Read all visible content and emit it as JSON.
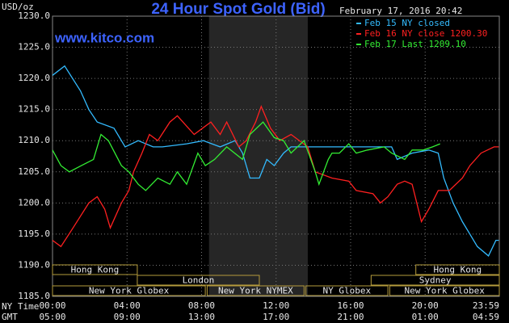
{
  "chart_data": {
    "type": "line",
    "title": "24 Hour Spot Gold (Bid)",
    "source": "www.kitco.com",
    "timestamp": "February 17, 2016 20:42",
    "unit": "USD/oz",
    "xlabel": "NY Time",
    "x2label": "GMT",
    "xlim": [
      0,
      23.98
    ],
    "ylim": [
      1185,
      1230
    ],
    "yticks": [
      {
        "value": 1185,
        "label": "1185.0"
      },
      {
        "value": 1190,
        "label": "1190.0"
      },
      {
        "value": 1195,
        "label": "1195.0"
      },
      {
        "value": 1200,
        "label": "1200.0"
      },
      {
        "value": 1205,
        "label": "1205.0"
      },
      {
        "value": 1210,
        "label": "1210.0"
      },
      {
        "value": 1215,
        "label": "1215.0"
      },
      {
        "value": 1220,
        "label": "1220.0"
      },
      {
        "value": 1225,
        "label": "1225.0"
      },
      {
        "value": 1230,
        "label": "1230.0"
      }
    ],
    "xticks": [
      {
        "value": 0,
        "label": "00:00"
      },
      {
        "value": 4,
        "label": "04:00"
      },
      {
        "value": 8,
        "label": "08:00"
      },
      {
        "value": 12,
        "label": "12:00"
      },
      {
        "value": 16,
        "label": "16:00"
      },
      {
        "value": 20,
        "label": "20:00"
      },
      {
        "value": 23.98,
        "label": "23:59"
      }
    ],
    "x2ticks": [
      {
        "value": 0,
        "label": "05:00"
      },
      {
        "value": 4,
        "label": "09:00"
      },
      {
        "value": 8,
        "label": "13:00"
      },
      {
        "value": 12,
        "label": "17:00"
      },
      {
        "value": 16,
        "label": "21:00"
      },
      {
        "value": 20,
        "label": "01:00"
      },
      {
        "value": 23.98,
        "label": "04:59"
      }
    ],
    "grid": true,
    "highlight_range": [
      8.4,
      13.7
    ],
    "sessions": [
      [
        {
          "label": "Hong Kong",
          "start": 0,
          "end": 4.55
        },
        {
          "label": "Hong Kong",
          "start": 19.5,
          "end": 23.98
        }
      ],
      [
        {
          "label": "London",
          "start": 4.55,
          "end": 11.1
        },
        {
          "label": "Sydney",
          "start": 17.1,
          "end": 23.98
        }
      ],
      [
        {
          "label": "New York Globex",
          "start": 0,
          "end": 8.2
        },
        {
          "label": "New York NYMEX",
          "start": 8.3,
          "end": 13.5
        },
        {
          "label": "NY Globex",
          "start": 13.6,
          "end": 18.0
        },
        {
          "label": "New York Globex",
          "start": 18.1,
          "end": 23.98
        }
      ]
    ],
    "series": [
      {
        "name": "Feb 15 NY closed",
        "color": "#33bbff",
        "x": [
          0,
          0.65,
          1.5,
          1.95,
          2.4,
          3.3,
          3.9,
          4.6,
          5.4,
          5.9,
          7.2,
          8.1,
          9.0,
          9.8,
          10.2,
          10.6,
          11.1,
          11.5,
          11.9,
          12.4,
          12.8,
          13.3,
          18.2,
          18.5,
          19.3,
          20.2,
          20.7,
          21.0,
          21.5,
          22.0,
          22.4,
          22.8,
          23.4,
          23.8,
          23.95
        ],
        "values": [
          1220.5,
          1222,
          1218,
          1215,
          1213,
          1212,
          1209,
          1210,
          1209,
          1209,
          1209.5,
          1210,
          1209,
          1210,
          1208,
          1204,
          1204,
          1207,
          1206,
          1208,
          1209,
          1209,
          1209,
          1207,
          1208,
          1208.5,
          1208,
          1204,
          1200,
          1197,
          1195,
          1193,
          1191.5,
          1194,
          1194
        ]
      },
      {
        "name": "Feb 16 NY close 1200.30",
        "color": "#ff2020",
        "x": [
          0,
          0.45,
          1.1,
          1.95,
          2.4,
          2.8,
          3.1,
          3.7,
          4.1,
          4.35,
          4.8,
          5.2,
          5.65,
          6.3,
          6.7,
          7.6,
          8.5,
          9.0,
          9.35,
          10.0,
          10.4,
          10.9,
          11.2,
          11.7,
          12.2,
          12.8,
          13.7,
          14.1,
          15.0,
          15.9,
          16.3,
          17.2,
          17.6,
          18.0,
          18.5,
          18.9,
          19.3,
          19.8,
          20.2,
          20.7,
          21.3,
          22.0,
          22.4,
          23.0,
          23.7,
          23.95
        ],
        "values": [
          1194,
          1193,
          1196,
          1200,
          1201,
          1199,
          1196,
          1200,
          1202,
          1205,
          1208,
          1211,
          1210,
          1213,
          1214,
          1211,
          1213,
          1211,
          1213,
          1209,
          1210,
          1213,
          1215.5,
          1212,
          1210,
          1211,
          1209,
          1205,
          1204,
          1203.5,
          1202,
          1201.5,
          1200,
          1201,
          1203,
          1203.5,
          1203,
          1197,
          1199,
          1202,
          1202,
          1204,
          1206,
          1208,
          1209,
          1209
        ]
      },
      {
        "name": "Feb 17 Last 1209.10",
        "color": "#33ee33",
        "x": [
          0,
          0.45,
          0.9,
          1.55,
          2.2,
          2.6,
          3.0,
          3.7,
          4.1,
          4.6,
          5.0,
          5.65,
          6.3,
          6.7,
          7.2,
          7.8,
          8.2,
          8.7,
          9.35,
          10.2,
          10.6,
          11.3,
          11.9,
          12.4,
          12.8,
          13.5,
          14.1,
          14.3,
          14.8,
          15.0,
          15.4,
          15.9,
          16.3,
          16.9,
          17.8,
          18.2,
          18.9,
          19.3,
          19.9,
          20.4,
          20.8
        ],
        "values": [
          1208.5,
          1206,
          1205,
          1206,
          1207,
          1211,
          1210,
          1206,
          1205,
          1203,
          1202,
          1204,
          1203,
          1205,
          1203,
          1208,
          1206,
          1207,
          1209,
          1207,
          1211,
          1213,
          1210.5,
          1210,
          1208,
          1210,
          1205,
          1203,
          1207,
          1208,
          1208,
          1209.5,
          1208,
          1208.5,
          1209,
          1208,
          1207,
          1208.5,
          1208.5,
          1209,
          1209.5
        ]
      }
    ]
  }
}
